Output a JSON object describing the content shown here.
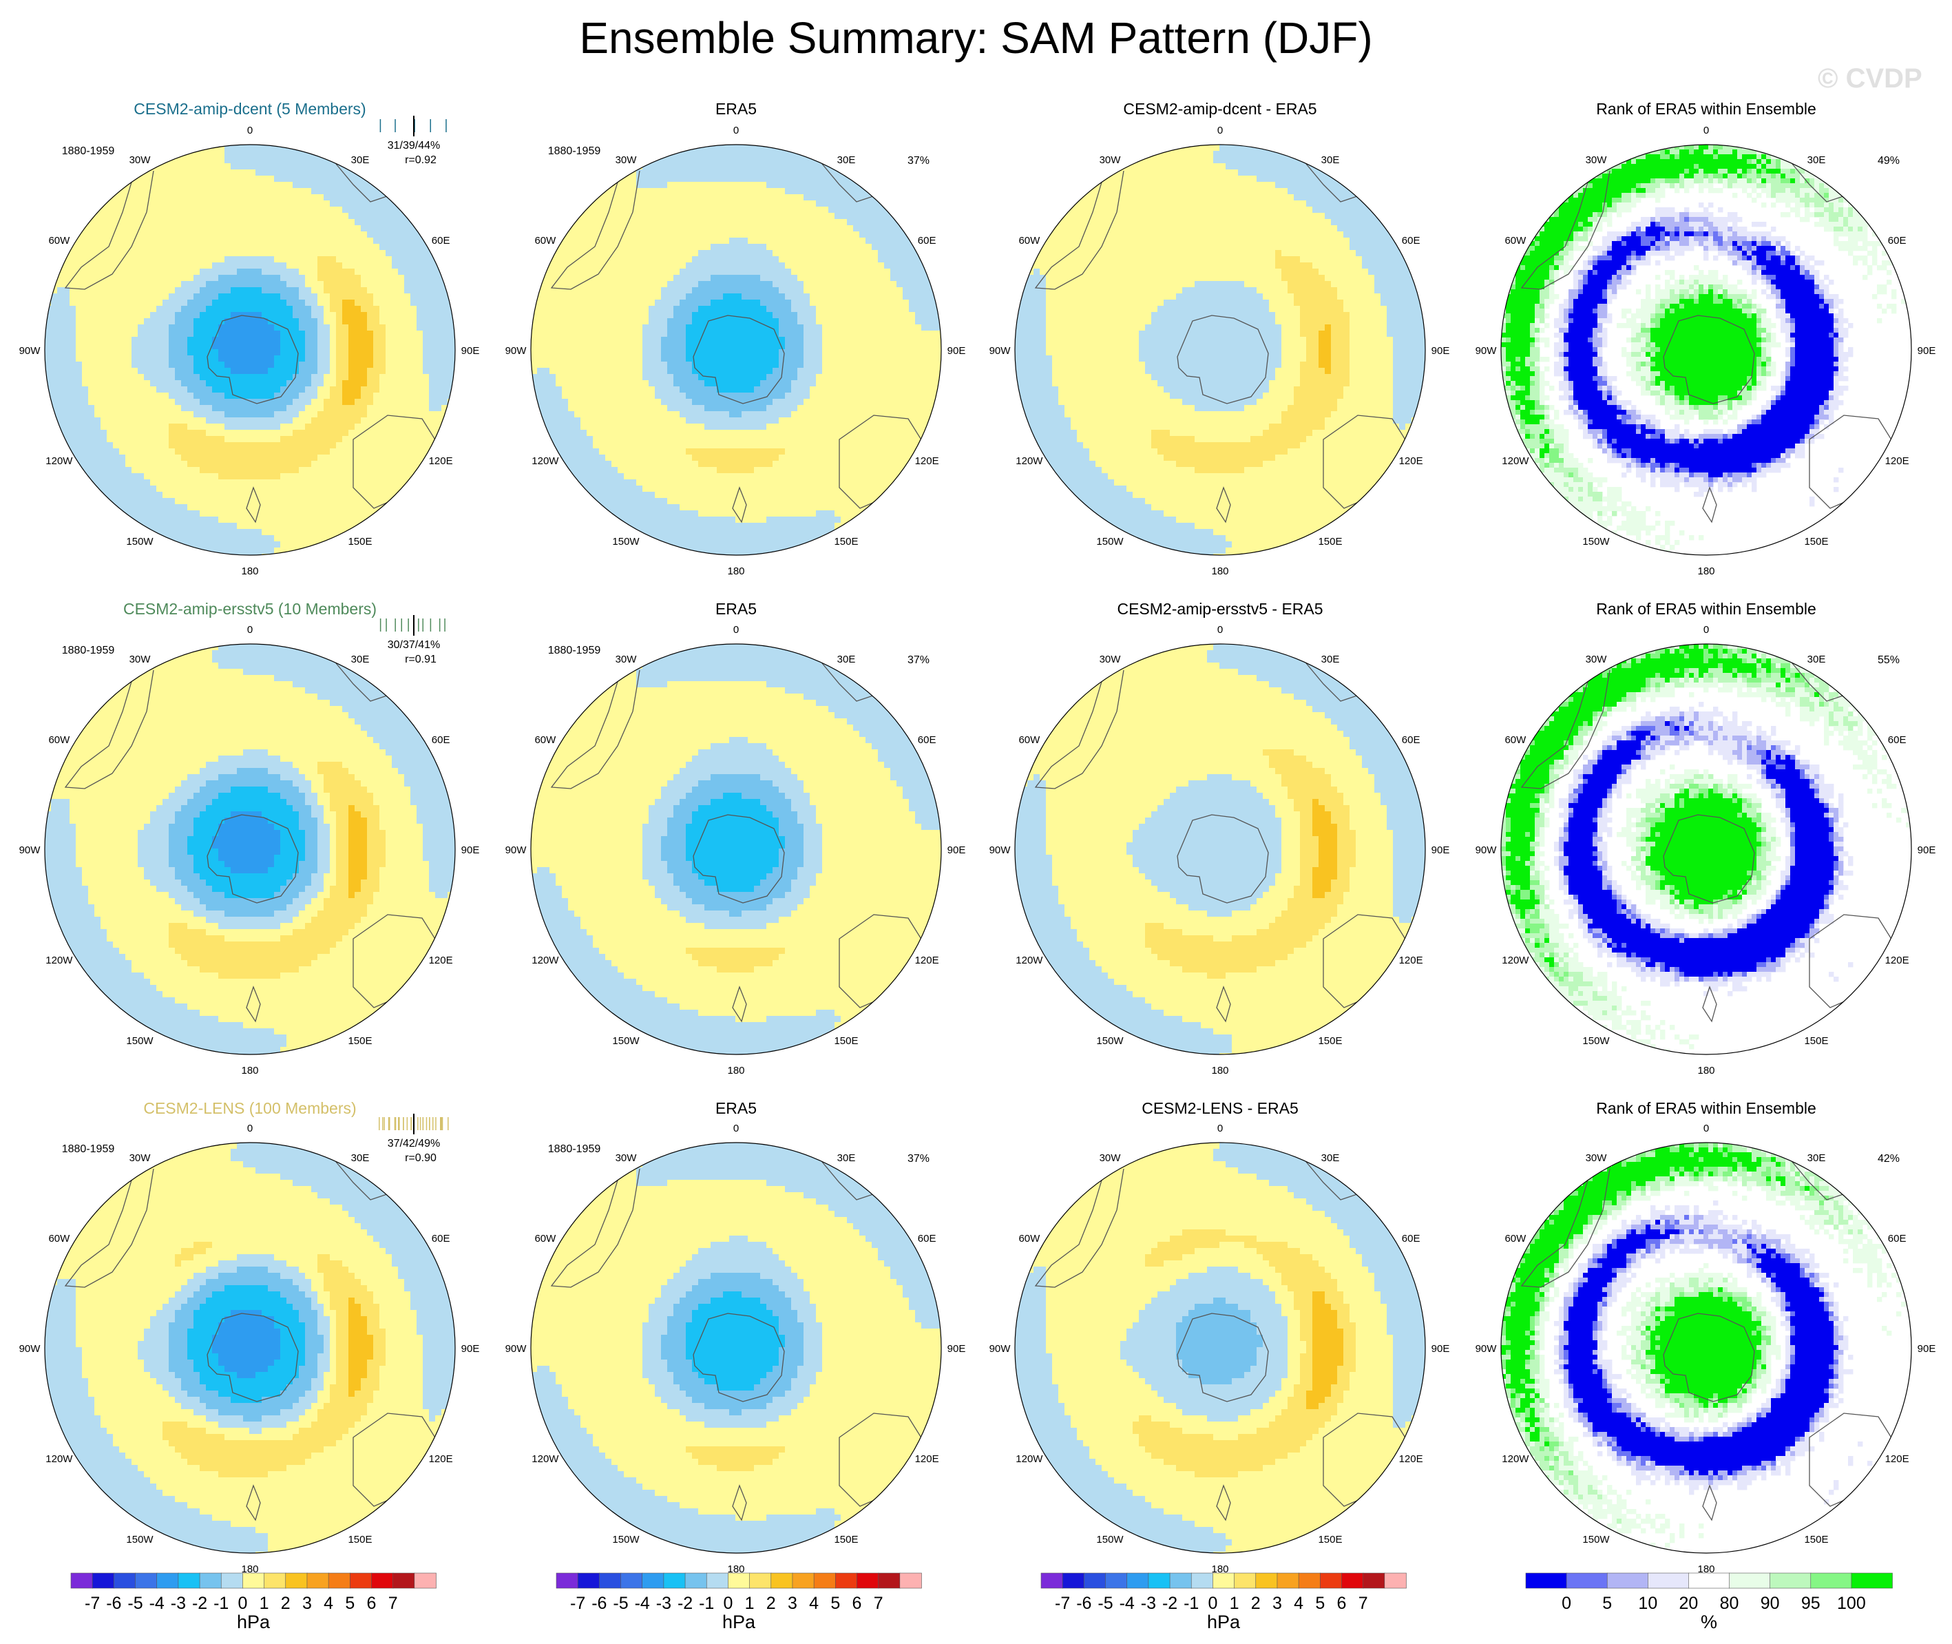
{
  "figure": {
    "title": "Ensemble Summary: SAM Pattern (DJF)",
    "watermark": "© CVDP"
  },
  "colors": {
    "land_outline": "#555555",
    "rows_title_colors": [
      "#1b6f8c",
      "#4f8a5b",
      "#d4c06a"
    ]
  },
  "chart_data": [
    {
      "type": "heatmap",
      "panel": "r0c0",
      "title": "CESM2-amip-dcent (5 Members)",
      "period": "1880-1959",
      "pct_text": "31/39/44%",
      "r_text": "r=0.92",
      "field_type": "pressure",
      "params": {
        "low": -3.6,
        "lowSpread": 0.16,
        "midRidge": 1.9,
        "wave": 0.5,
        "phase": 0.4
      }
    },
    {
      "type": "heatmap",
      "panel": "r0c1",
      "title": "ERA5",
      "period": "1880-1959",
      "pct_text": "37%",
      "field_type": "pressure",
      "params": {
        "low": -3.2,
        "lowSpread": 0.15,
        "midRidge": 0.9,
        "wave": 0.4,
        "phase": 1.2
      }
    },
    {
      "type": "heatmap",
      "panel": "r0c2",
      "title": "CESM2-amip-dcent - ERA5",
      "period": "",
      "pct_text": "",
      "field_type": "pressure",
      "params": {
        "low": -0.8,
        "lowSpread": 0.14,
        "midRidge": 1.2,
        "wave": 0.6,
        "phase": 0.2
      }
    },
    {
      "type": "heatmap",
      "panel": "r0c3",
      "title": "Rank of ERA5 within Ensemble",
      "period": "",
      "pct_text": "49%",
      "field_type": "rank",
      "params": {
        "seed": 11,
        "phase": 0.3
      }
    },
    {
      "type": "heatmap",
      "panel": "r1c0",
      "title": "CESM2-amip-ersstv5 (10 Members)",
      "period": "1880-1959",
      "pct_text": "30/37/41%",
      "r_text": "r=0.91",
      "field_type": "pressure",
      "params": {
        "low": -3.6,
        "lowSpread": 0.16,
        "midRidge": 1.8,
        "wave": 0.5,
        "phase": 0.5
      }
    },
    {
      "type": "heatmap",
      "panel": "r1c1",
      "title": "ERA5",
      "period": "1880-1959",
      "pct_text": "37%",
      "field_type": "pressure",
      "params": {
        "low": -3.2,
        "lowSpread": 0.15,
        "midRidge": 0.9,
        "wave": 0.4,
        "phase": 1.2
      }
    },
    {
      "type": "heatmap",
      "panel": "r1c2",
      "title": "CESM2-amip-ersstv5 - ERA5",
      "period": "",
      "pct_text": "",
      "field_type": "pressure",
      "params": {
        "low": -1.0,
        "lowSpread": 0.14,
        "midRidge": 1.4,
        "wave": 0.6,
        "phase": 0.25
      }
    },
    {
      "type": "heatmap",
      "panel": "r1c3",
      "title": "Rank of ERA5 within Ensemble",
      "period": "",
      "pct_text": "55%",
      "field_type": "rank",
      "params": {
        "seed": 23,
        "phase": 0.45
      }
    },
    {
      "type": "heatmap",
      "panel": "r2c0",
      "title": "CESM2-LENS (100 Members)",
      "period": "1880-1959",
      "pct_text": "37/42/49%",
      "r_text": "r=0.90",
      "field_type": "pressure",
      "params": {
        "low": -3.6,
        "lowSpread": 0.17,
        "midRidge": 2.1,
        "wave": 0.35,
        "phase": 0.3
      }
    },
    {
      "type": "heatmap",
      "panel": "r2c1",
      "title": "ERA5",
      "period": "1880-1959",
      "pct_text": "37%",
      "field_type": "pressure",
      "params": {
        "low": -3.2,
        "lowSpread": 0.15,
        "midRidge": 0.9,
        "wave": 0.4,
        "phase": 1.2
      }
    },
    {
      "type": "heatmap",
      "panel": "r2c2",
      "title": "CESM2-LENS - ERA5",
      "period": "",
      "pct_text": "",
      "field_type": "pressure",
      "params": {
        "low": -1.6,
        "lowSpread": 0.15,
        "midRidge": 1.7,
        "wave": 0.5,
        "phase": 0.2
      }
    },
    {
      "type": "heatmap",
      "panel": "r2c3",
      "title": "Rank of ERA5 within Ensemble",
      "period": "",
      "pct_text": "42%",
      "field_type": "rank",
      "params": {
        "seed": 37,
        "phase": 0.35
      }
    }
  ],
  "longitude_labels": [
    "0",
    "30E",
    "60E",
    "90E",
    "120E",
    "150E",
    "180",
    "150W",
    "120W",
    "90W",
    "60W",
    "30W"
  ],
  "pressure_colorbar": {
    "unit": "hPa",
    "tick_labels": [
      "-7",
      "-6",
      "-5",
      "-4",
      "-3",
      "-2",
      "-1",
      "0",
      "1",
      "2",
      "3",
      "4",
      "5",
      "6",
      "7"
    ],
    "colors": [
      "#7b2bd9",
      "#1616d8",
      "#2a4fe0",
      "#3c74e8",
      "#2e9cf0",
      "#19c1f5",
      "#76c3ee",
      "#b5dcf1",
      "#fffa99",
      "#fde46a",
      "#f9c321",
      "#f8a220",
      "#f57d16",
      "#ec3b10",
      "#e0060b",
      "#b3161b",
      "#fdb1b1"
    ]
  },
  "rank_colorbar": {
    "unit": "%",
    "tick_labels": [
      "0",
      "5",
      "10",
      "20",
      "80",
      "90",
      "95",
      "100"
    ],
    "colors": [
      "#0000f0",
      "#6b74f5",
      "#b2b5f5",
      "#e6e7fb",
      "#ffffff",
      "#e8fde8",
      "#bdf8bd",
      "#85f685",
      "#06f006"
    ]
  }
}
